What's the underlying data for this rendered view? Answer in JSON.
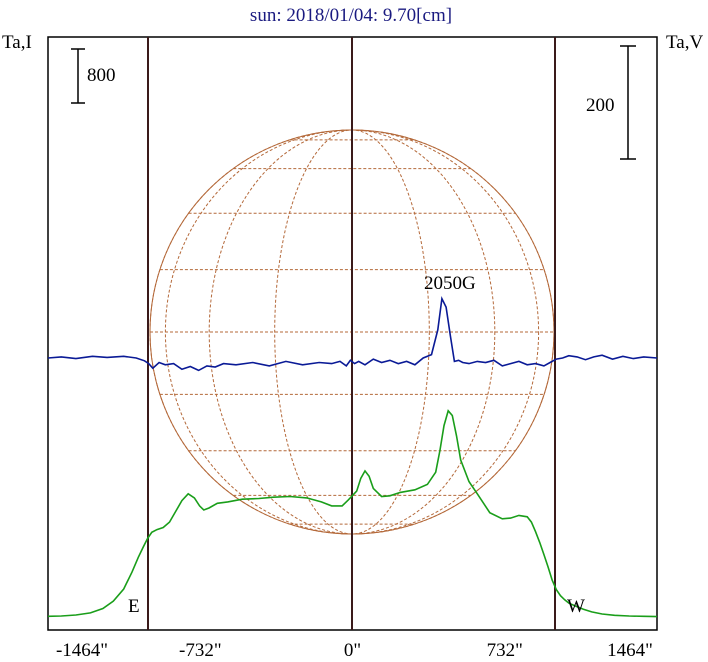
{
  "title": "sun: 2018/01/04: 9.70[cm]",
  "left_axis_label": "Ta,I",
  "right_axis_label": "Ta,V",
  "scale_left_label": "800",
  "scale_right_label": "200",
  "limb_east_label": "E",
  "limb_west_label": "W",
  "annotation": "2050G",
  "colors": {
    "intensity": "#1a9e1a",
    "polarization": "#0a1a96",
    "grid": "#b4693a",
    "limb_line": "#3a1a1a",
    "title": "#1a1a80"
  },
  "chart_data": {
    "type": "line",
    "title": "sun: 2018/01/04: 9.70[cm]",
    "x_ticks": [
      "-1464\"",
      "-732\"",
      "0\"",
      "732\"",
      "1464\""
    ],
    "x_tick_values": [
      -1464,
      -732,
      0,
      732,
      1464
    ],
    "xlim": [
      -1464,
      1464
    ],
    "limb_x": [
      -976,
      976
    ],
    "grid": true,
    "series": [
      {
        "name": "Ta,I",
        "color": "#1a9e1a",
        "x": [
          -1464,
          -1400,
          -1330,
          -1260,
          -1200,
          -1150,
          -1100,
          -1060,
          -1030,
          -1005,
          -985,
          -965,
          -940,
          -910,
          -880,
          -850,
          -820,
          -790,
          -760,
          -735,
          -715,
          -690,
          -650,
          -600,
          -530,
          -450,
          -380,
          -300,
          -220,
          -150,
          -100,
          -50,
          -20,
          20,
          40,
          60,
          80,
          100,
          140,
          180,
          230,
          300,
          360,
          400,
          420,
          440,
          460,
          480,
          500,
          520,
          560,
          600,
          660,
          720,
          760,
          800,
          840,
          860,
          880,
          900,
          920,
          940,
          960,
          980,
          1000,
          1020,
          1040,
          1070,
          1110,
          1150,
          1200,
          1260,
          1330,
          1400,
          1464
        ],
        "y": [
          25,
          30,
          45,
          75,
          140,
          250,
          430,
          680,
          900,
          1060,
          1180,
          1270,
          1310,
          1340,
          1420,
          1580,
          1740,
          1840,
          1780,
          1660,
          1600,
          1630,
          1700,
          1720,
          1760,
          1770,
          1790,
          1800,
          1780,
          1720,
          1660,
          1660,
          1750,
          1880,
          2070,
          2180,
          2100,
          1920,
          1800,
          1810,
          1860,
          1900,
          1980,
          2160,
          2480,
          2850,
          3070,
          3000,
          2700,
          2340,
          2020,
          1840,
          1560,
          1470,
          1480,
          1520,
          1500,
          1420,
          1280,
          1120,
          940,
          760,
          560,
          420,
          330,
          270,
          220,
          180,
          130,
          90,
          60,
          40,
          30,
          25,
          20
        ]
      },
      {
        "name": "Ta,V",
        "color": "#0a1a96",
        "x": [
          -1464,
          -1400,
          -1330,
          -1250,
          -1180,
          -1100,
          -1040,
          -1000,
          -980,
          -960,
          -930,
          -900,
          -860,
          -820,
          -780,
          -740,
          -700,
          -660,
          -620,
          -560,
          -480,
          -400,
          -320,
          -240,
          -160,
          -100,
          -60,
          -30,
          -10,
          10,
          30,
          60,
          100,
          140,
          180,
          220,
          260,
          300,
          340,
          380,
          410,
          430,
          450,
          470,
          490,
          510,
          530,
          560,
          600,
          640,
          680,
          720,
          760,
          800,
          840,
          880,
          920,
          950,
          980,
          1010,
          1040,
          1080,
          1120,
          1160,
          1200,
          1250,
          1300,
          1350,
          1400,
          1464
        ],
        "y": [
          0,
          2,
          -1,
          3,
          1,
          3,
          0,
          -5,
          -10,
          -18,
          -8,
          -12,
          -10,
          -20,
          -15,
          -22,
          -14,
          -16,
          -10,
          -12,
          -8,
          -14,
          -6,
          -12,
          -8,
          -10,
          -6,
          -14,
          -4,
          -10,
          -6,
          -12,
          -2,
          -8,
          -4,
          -10,
          -6,
          -12,
          0,
          6,
          50,
          105,
          90,
          40,
          -6,
          -4,
          -8,
          -10,
          -6,
          -8,
          -4,
          -14,
          -10,
          -6,
          -12,
          -10,
          -14,
          -8,
          -2,
          0,
          4,
          2,
          -3,
          2,
          5,
          -2,
          3,
          -1,
          2,
          0
        ]
      }
    ]
  }
}
